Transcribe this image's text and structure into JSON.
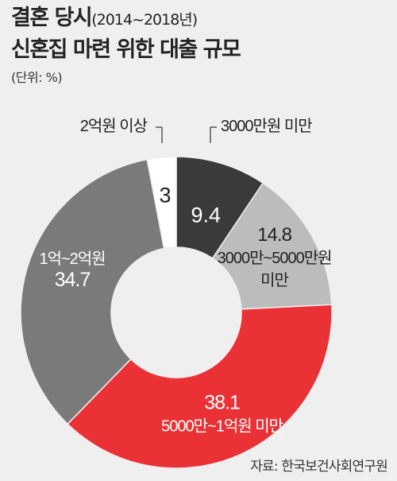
{
  "header": {
    "title_main": "결혼 당시",
    "title_period": "(2014~2018년)",
    "title_line2": "신혼집 마련 위한 대출 규모",
    "unit": "(단위: %)"
  },
  "chart_data": {
    "type": "donut",
    "title": "결혼 당시(2014~2018년) 신혼집 마련 위한 대출 규모",
    "unit": "%",
    "slices": [
      {
        "label": "3000만원 미만",
        "value": 9.4,
        "color": "#3a3a3a",
        "text_color": "#ffffff"
      },
      {
        "label": "3000만~5000만원 미만",
        "value": 14.8,
        "color": "#bcbcbc",
        "text_color": "#222222"
      },
      {
        "label": "5000만~1억원 미만",
        "value": 38.1,
        "color": "#ea3236",
        "text_color": "#ffffff"
      },
      {
        "label": "1억~2억원",
        "value": 34.7,
        "color": "#7a7a7a",
        "text_color": "#ffffff"
      },
      {
        "label": "2억원 이상",
        "value": 3,
        "color": "#ffffff",
        "text_color": "#222222"
      }
    ]
  },
  "source": "자료: 한국보건사회연구원"
}
